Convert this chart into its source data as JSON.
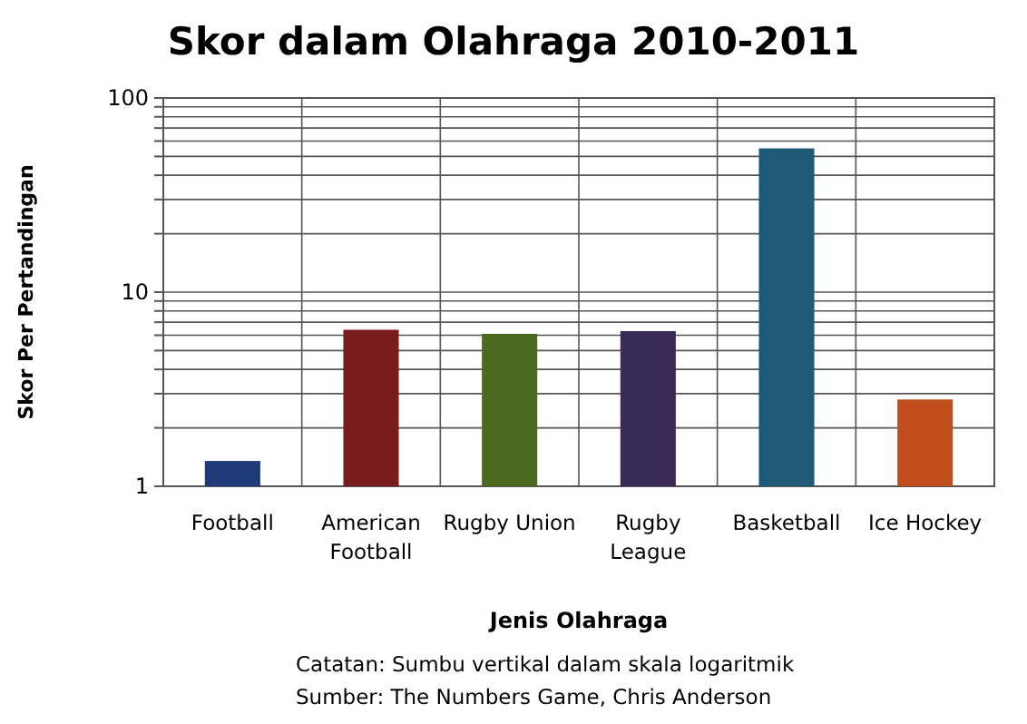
{
  "chart_data": {
    "type": "bar",
    "title": "Skor dalam Olahraga 2010-2011",
    "xlabel": "Jenis Olahraga",
    "ylabel": "Skor Per Pertandingan",
    "categories": [
      "Football",
      "American Football",
      "Rugby Union",
      "Rugby League",
      "Basketball",
      "Ice Hockey"
    ],
    "values": [
      1.35,
      6.4,
      6.1,
      6.3,
      55,
      2.8
    ],
    "colors": [
      "#1f3a78",
      "#7a1c1e",
      "#4b6a1e",
      "#3a2a56",
      "#1c5a78",
      "#c04e1c"
    ],
    "log": true,
    "ylim": [
      1,
      100
    ],
    "yticks": [
      1,
      {
        "value": 2,
        "label": null
      },
      {
        "value": 3,
        "label": null
      },
      {
        "value": 4,
        "label": null
      },
      {
        "value": 5,
        "label": null
      },
      {
        "value": 6,
        "label": null
      },
      {
        "value": 7,
        "label": null
      },
      {
        "value": 8,
        "label": null
      },
      {
        "value": 9,
        "label": null
      },
      10,
      {
        "value": 20,
        "label": null
      },
      {
        "value": 30,
        "label": null
      },
      {
        "value": 40,
        "label": null
      },
      {
        "value": 50,
        "label": null
      },
      {
        "value": 60,
        "label": null
      },
      {
        "value": 70,
        "label": null
      },
      {
        "value": 80,
        "label": null
      },
      {
        "value": 90,
        "label": null
      },
      100
    ],
    "grid": true,
    "annotations": [
      "Catatan: Sumbu vertikal dalam skala logaritmik",
      "Sumber: The Numbers Game, Chris Anderson"
    ]
  }
}
